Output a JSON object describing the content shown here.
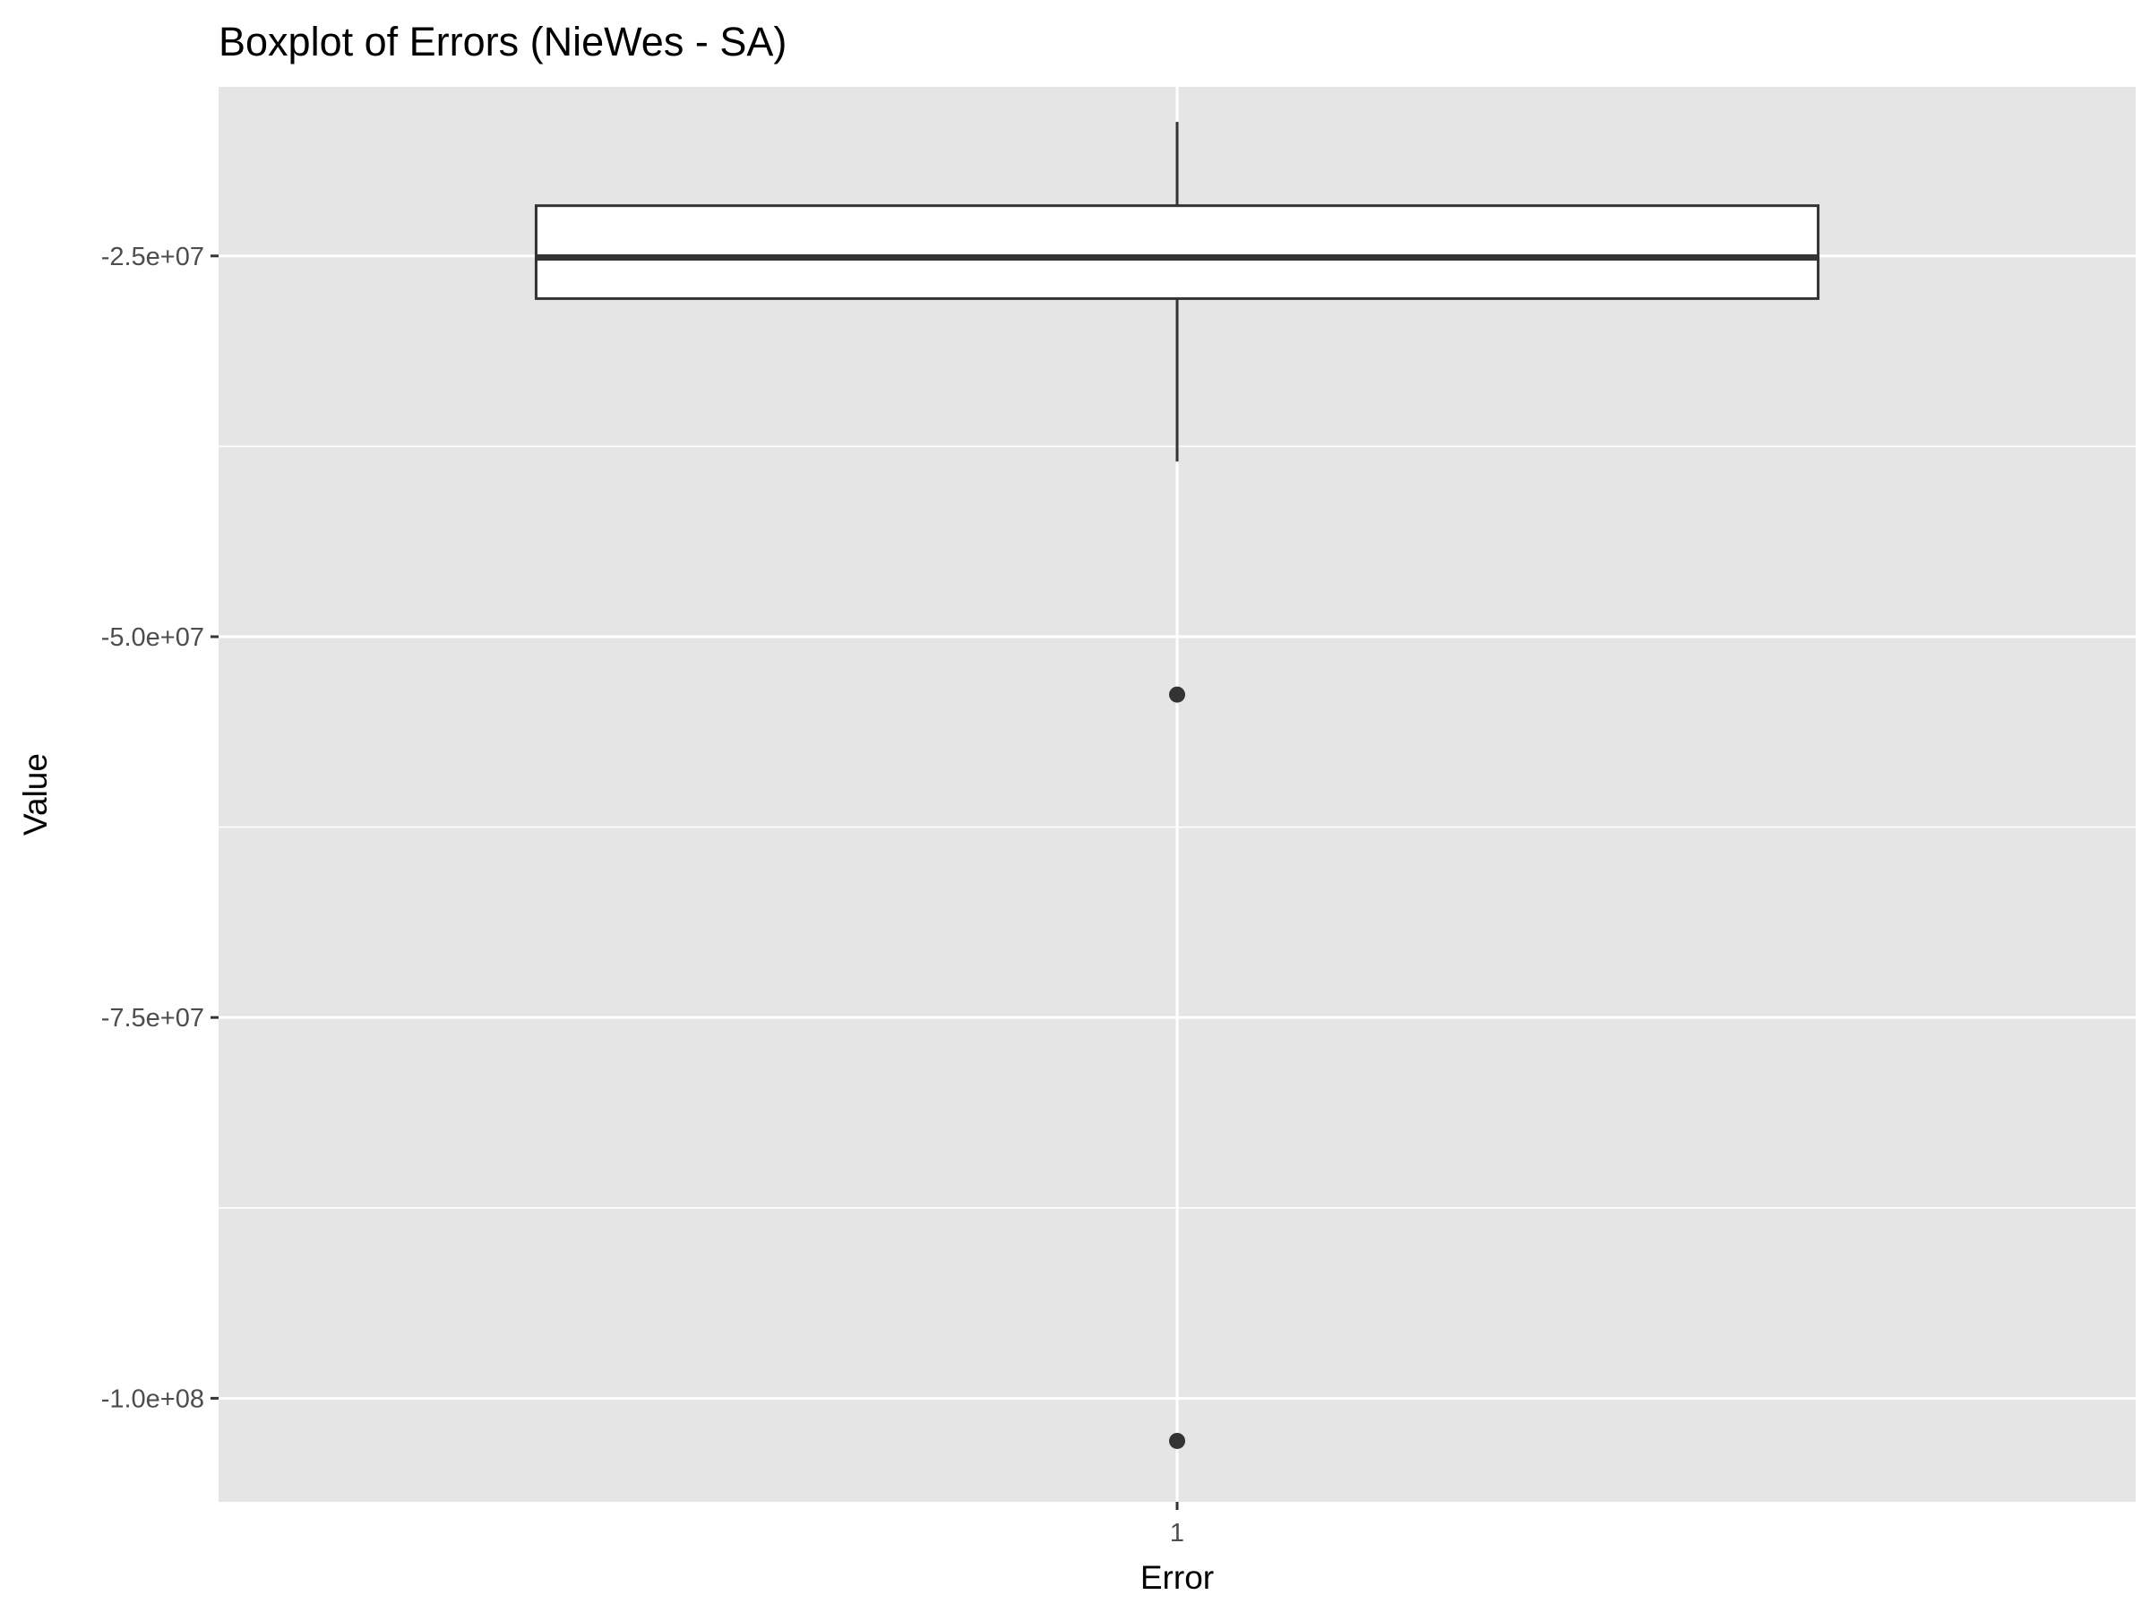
{
  "chart_data": {
    "type": "boxplot",
    "title": "Boxplot of Errors (NieWes - SA)",
    "xlabel": "Error",
    "ylabel": "Value",
    "categories": [
      "1"
    ],
    "boxes": [
      {
        "category": "1",
        "whisker_low": -38500000,
        "q1": -27800000,
        "median": -25100000,
        "q3": -21700000,
        "whisker_high": -16200000,
        "outliers": [
          -53800000,
          -102800000
        ]
      }
    ],
    "yticks": [
      -25000000,
      -50000000,
      -75000000,
      -100000000
    ],
    "ytick_labels": [
      "-2.5e+07",
      "-5.0e+07",
      "-7.5e+07",
      "-1.0e+08"
    ],
    "ylim": [
      -106800000,
      -13900000
    ],
    "grid": true,
    "colors": {
      "panel": "#e5e5e5",
      "grid": "#ffffff",
      "box_fill": "#ffffff",
      "box_line": "#333333",
      "tick": "#333333"
    }
  }
}
